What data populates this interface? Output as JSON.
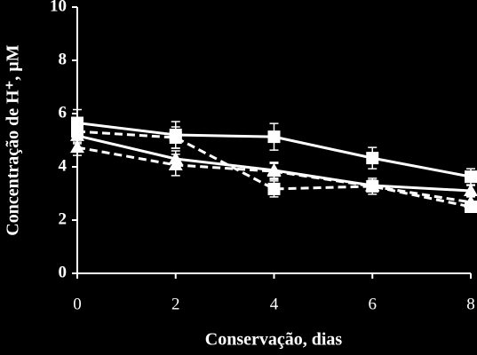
{
  "chart_data": {
    "type": "line",
    "xlabel": "Conservação, dias",
    "ylabel": "Concentração de H⁺, µM",
    "x": [
      0,
      2,
      4,
      6,
      8
    ],
    "xlim": [
      0,
      8
    ],
    "xticks": [
      0,
      2,
      4,
      6,
      8
    ],
    "ylim": [
      0,
      10
    ],
    "yticks": [
      0,
      2,
      4,
      6,
      8,
      10
    ],
    "series": [
      {
        "color": "#ffffff",
        "marker": "square",
        "dashed": false,
        "values": [
          5.65,
          5.2,
          5.13,
          4.33,
          3.63
        ],
        "errors": [
          0.5,
          0.5,
          0.5,
          0.4,
          0.3
        ]
      },
      {
        "color": "#ffffff",
        "marker": "square",
        "dashed": true,
        "values": [
          5.33,
          5.1,
          3.17,
          3.27,
          2.5
        ],
        "errors": [
          0.4,
          0.4,
          0.3,
          0.3,
          0.2
        ]
      },
      {
        "color": "#ffffff",
        "marker": "triangle",
        "dashed": false,
        "values": [
          5.17,
          4.3,
          3.87,
          3.3,
          3.1
        ],
        "errors": [
          0.3,
          0.3,
          0.3,
          0.2,
          0.2
        ]
      },
      {
        "color": "#ffffff",
        "marker": "triangle",
        "dashed": true,
        "values": [
          4.73,
          4.07,
          3.83,
          3.27,
          2.67
        ],
        "errors": [
          0.3,
          0.4,
          0.3,
          0.2,
          0.2
        ]
      }
    ]
  }
}
